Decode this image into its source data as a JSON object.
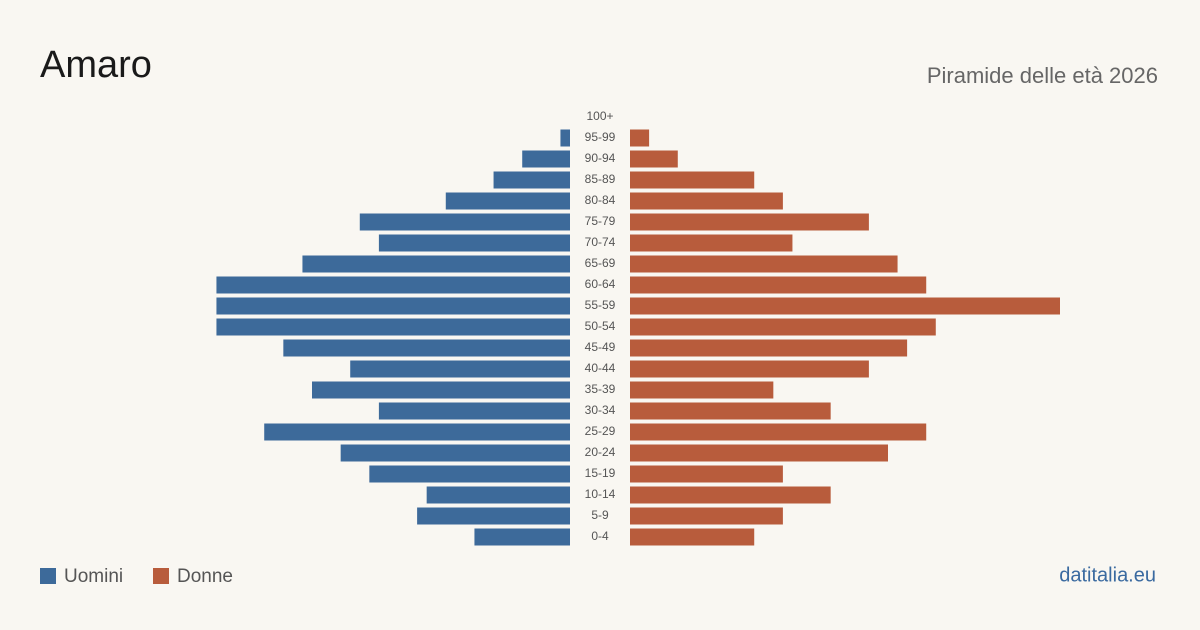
{
  "chart_data": {
    "type": "pyramid",
    "title": "Amaro",
    "subtitle": "Piramide delle età 2026",
    "source": "datitalia.eu",
    "categories": [
      "100+",
      "95-99",
      "90-94",
      "85-89",
      "80-84",
      "75-79",
      "70-74",
      "65-69",
      "60-64",
      "55-59",
      "50-54",
      "45-49",
      "40-44",
      "35-39",
      "30-34",
      "25-29",
      "20-24",
      "15-19",
      "10-14",
      "5-9",
      "0-4"
    ],
    "series": [
      {
        "name": "Uomini",
        "color": "#3d6a9a",
        "values": [
          0,
          1,
          5,
          8,
          13,
          22,
          20,
          28,
          37,
          37,
          37,
          30,
          23,
          27,
          20,
          32,
          24,
          21,
          15,
          16,
          10
        ]
      },
      {
        "name": "Donne",
        "color": "#b85c3c",
        "values": [
          0,
          2,
          5,
          13,
          16,
          25,
          17,
          28,
          31,
          45,
          32,
          29,
          25,
          15,
          21,
          31,
          27,
          16,
          21,
          16,
          13
        ]
      }
    ]
  }
}
